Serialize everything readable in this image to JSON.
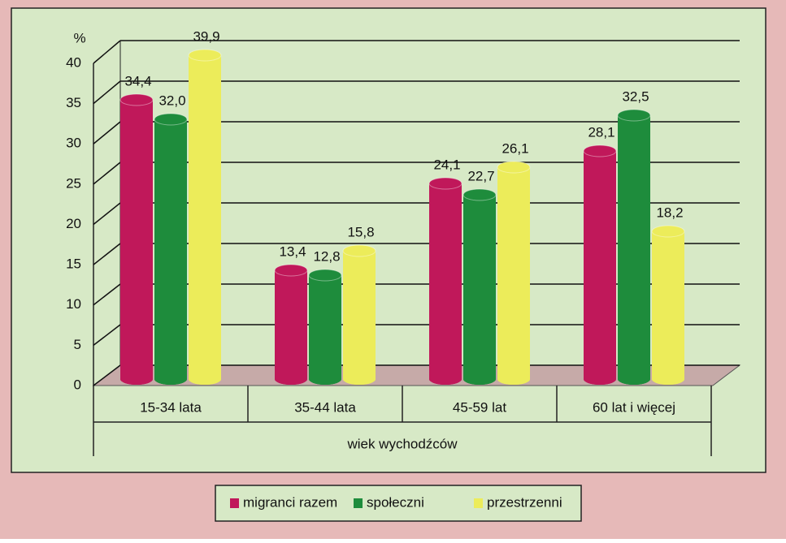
{
  "chart_data": {
    "type": "bar3d",
    "y_axis_label": "%",
    "x_axis_label": "wiek wychodźców",
    "categories": [
      "15-34 lata",
      "35-44 lata",
      "45-59 lat",
      "60 lat i więcej"
    ],
    "series": [
      {
        "name": "migranci razem",
        "color": "#c0185a",
        "values": [
          34.4,
          13.4,
          24.1,
          28.1
        ],
        "value_labels": [
          "34,4",
          "13,4",
          "24,1",
          "28,1"
        ]
      },
      {
        "name": "społeczni",
        "color": "#1e8c3c",
        "values": [
          32.0,
          12.8,
          22.7,
          32.5
        ],
        "value_labels": [
          "32,0",
          "12,8",
          "22,7",
          "32,5"
        ]
      },
      {
        "name": "przestrzenni",
        "color": "#ecec5a",
        "values": [
          39.9,
          15.8,
          26.1,
          18.2
        ],
        "value_labels": [
          "39,9",
          "15,8",
          "26,1",
          "18,2"
        ]
      }
    ],
    "ylim": [
      0,
      40
    ],
    "yticks": [
      0,
      5,
      10,
      15,
      20,
      25,
      30,
      35,
      40
    ],
    "grid": true,
    "legend": "bottom"
  }
}
